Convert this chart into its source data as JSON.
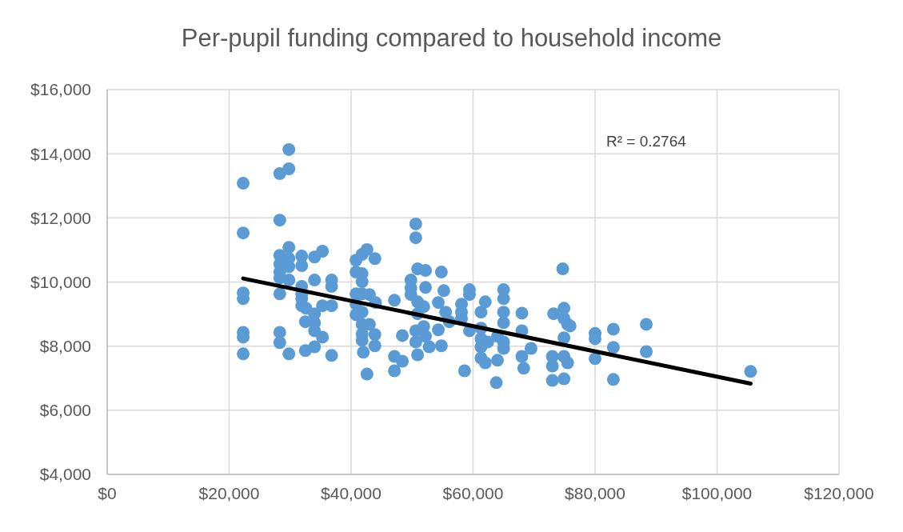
{
  "chart_data": {
    "type": "scatter",
    "title": "Per-pupil funding compared to household income",
    "grid": true,
    "xlim": [
      0,
      120000
    ],
    "xticks": [
      {
        "value": 0,
        "label": "$0"
      },
      {
        "value": 20000,
        "label": "$20,000"
      },
      {
        "value": 40000,
        "label": "$40,000"
      },
      {
        "value": 60000,
        "label": "$60,000"
      },
      {
        "value": 80000,
        "label": "$80,000"
      },
      {
        "value": 100000,
        "label": "$100,000"
      },
      {
        "value": 120000,
        "label": "$120,000"
      }
    ],
    "ylim": [
      4000,
      16000
    ],
    "yticks": [
      {
        "value": 4000,
        "label": "$4,000"
      },
      {
        "value": 6000,
        "label": "$6,000"
      },
      {
        "value": 8000,
        "label": "$8,000"
      },
      {
        "value": 10000,
        "label": "$10,000"
      },
      {
        "value": 12000,
        "label": "$12,000"
      },
      {
        "value": 14000,
        "label": "$14,000"
      },
      {
        "value": 16000,
        "label": "$16,000"
      }
    ],
    "annotations": [
      "R² = 0.2764"
    ],
    "series": [
      {
        "marker": "circle",
        "color": "#5b9bd5",
        "x": [
          22300,
          22300,
          22300,
          22300,
          22300,
          22300,
          22300,
          29800,
          29800,
          28300,
          28300,
          29800,
          28300,
          28300,
          28300,
          29800,
          29800,
          31900,
          31900,
          34000,
          35300,
          28300,
          29800,
          34000,
          36800,
          36800,
          31900,
          31900,
          31900,
          28300,
          31900,
          32600,
          35300,
          36800,
          34000,
          34000,
          34000,
          32500,
          35300,
          28300,
          28300,
          34000,
          32500,
          29800,
          36800,
          40800,
          41800,
          42600,
          43900,
          40800,
          41800,
          41800,
          40800,
          41800,
          43000,
          44000,
          40800,
          40800,
          41800,
          41800,
          43000,
          41800,
          41800,
          43900,
          43900,
          42000,
          42600,
          47100,
          48400,
          47100,
          48400,
          47100,
          50600,
          50600,
          50900,
          52200,
          54800,
          49800,
          49800,
          49800,
          52200,
          55200,
          50900,
          51900,
          50900,
          54300,
          55500,
          50600,
          51900,
          50600,
          52200,
          52800,
          50900,
          54300,
          54800,
          56100,
          58100,
          58100,
          59400,
          59400,
          58100,
          59400,
          58600,
          62000,
          61300,
          61300,
          61300,
          61300,
          61300,
          62000,
          62400,
          64000,
          65000,
          65000,
          64000,
          63800,
          65000,
          65000,
          65000,
          65000,
          68000,
          68000,
          69500,
          68000,
          68300,
          74700,
          74900,
          73200,
          74900,
          75500,
          75900,
          74900,
          73000,
          73000,
          73000,
          74900,
          75500,
          74900,
          80000,
          80000,
          83000,
          83000,
          80000,
          83000,
          88400,
          88400,
          105500
        ],
        "values": [
          13080,
          11530,
          9660,
          9480,
          8430,
          8280,
          7760,
          14130,
          13530,
          13380,
          11930,
          11080,
          10830,
          10560,
          10310,
          10730,
          10480,
          10810,
          10510,
          10780,
          10960,
          10130,
          10060,
          10060,
          10060,
          9860,
          9860,
          9630,
          9480,
          9630,
          9260,
          9180,
          9260,
          9260,
          9010,
          8730,
          8480,
          8760,
          8280,
          8430,
          8110,
          7980,
          7860,
          7760,
          7710,
          10680,
          10860,
          11010,
          10730,
          10310,
          10260,
          10010,
          9630,
          9630,
          9610,
          9360,
          9310,
          8980,
          9060,
          8680,
          8680,
          8380,
          8180,
          8360,
          8010,
          7810,
          7130,
          9430,
          8330,
          7680,
          7530,
          7230,
          11380,
          11810,
          10410,
          10360,
          10310,
          10060,
          9810,
          9610,
          9830,
          9730,
          9380,
          9230,
          9010,
          9360,
          9060,
          8480,
          8610,
          8130,
          8310,
          7980,
          7730,
          8510,
          8010,
          8760,
          9310,
          9060,
          9760,
          9610,
          8860,
          8480,
          7230,
          9380,
          9060,
          8560,
          8230,
          7980,
          7630,
          7480,
          8130,
          8310,
          8130,
          7930,
          7560,
          6860,
          9760,
          9480,
          9060,
          8730,
          9030,
          8480,
          7930,
          7680,
          7310,
          10410,
          9180,
          9010,
          8860,
          8680,
          8630,
          8260,
          7680,
          7380,
          6930,
          7680,
          7480,
          6980,
          8400,
          8230,
          8530,
          7960,
          7610,
          6960,
          8680,
          7830,
          7210
        ]
      },
      {
        "type": "line",
        "marker": "none",
        "color": "#000000",
        "x": [
          22300,
          105500
        ],
        "values": [
          10110,
          6830
        ]
      }
    ]
  }
}
